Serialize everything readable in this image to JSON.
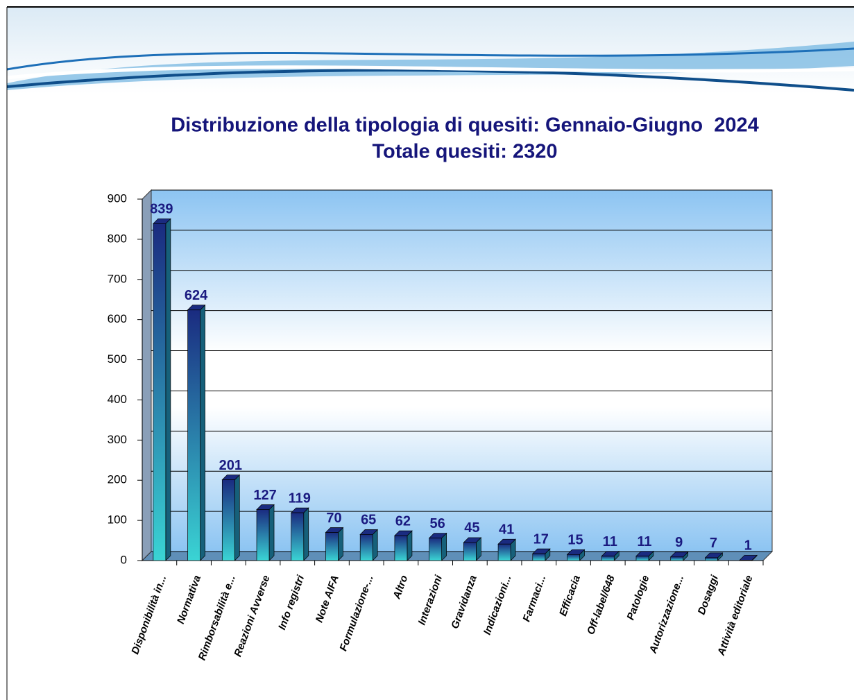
{
  "chart_data": {
    "type": "bar3d",
    "title": "Distribuzione della tipologia di quesiti: Gennaio-Giugno  2024",
    "subtitle": "Totale quesiti: 2320",
    "categories": [
      "Disponibilità in...",
      "Normativa",
      "Rimborsabilità e...",
      "Reazioni Avverse",
      "Info registri",
      "Note AIFA",
      "Formulazione-...",
      "Altro",
      "Interazioni",
      "Gravidanza",
      "Indicazioni...",
      "Farmaci...",
      "Efficacia",
      "Off-label/648",
      "Patologie",
      "Autorizzazione...",
      "Dosaggi",
      "Attività editoriale"
    ],
    "values": [
      839,
      624,
      201,
      127,
      119,
      70,
      65,
      62,
      56,
      45,
      41,
      17,
      15,
      11,
      11,
      9,
      7,
      1
    ],
    "ylim": [
      0,
      900
    ],
    "yticks": [
      0,
      100,
      200,
      300,
      400,
      500,
      600,
      700,
      800,
      900
    ],
    "grid": true
  }
}
